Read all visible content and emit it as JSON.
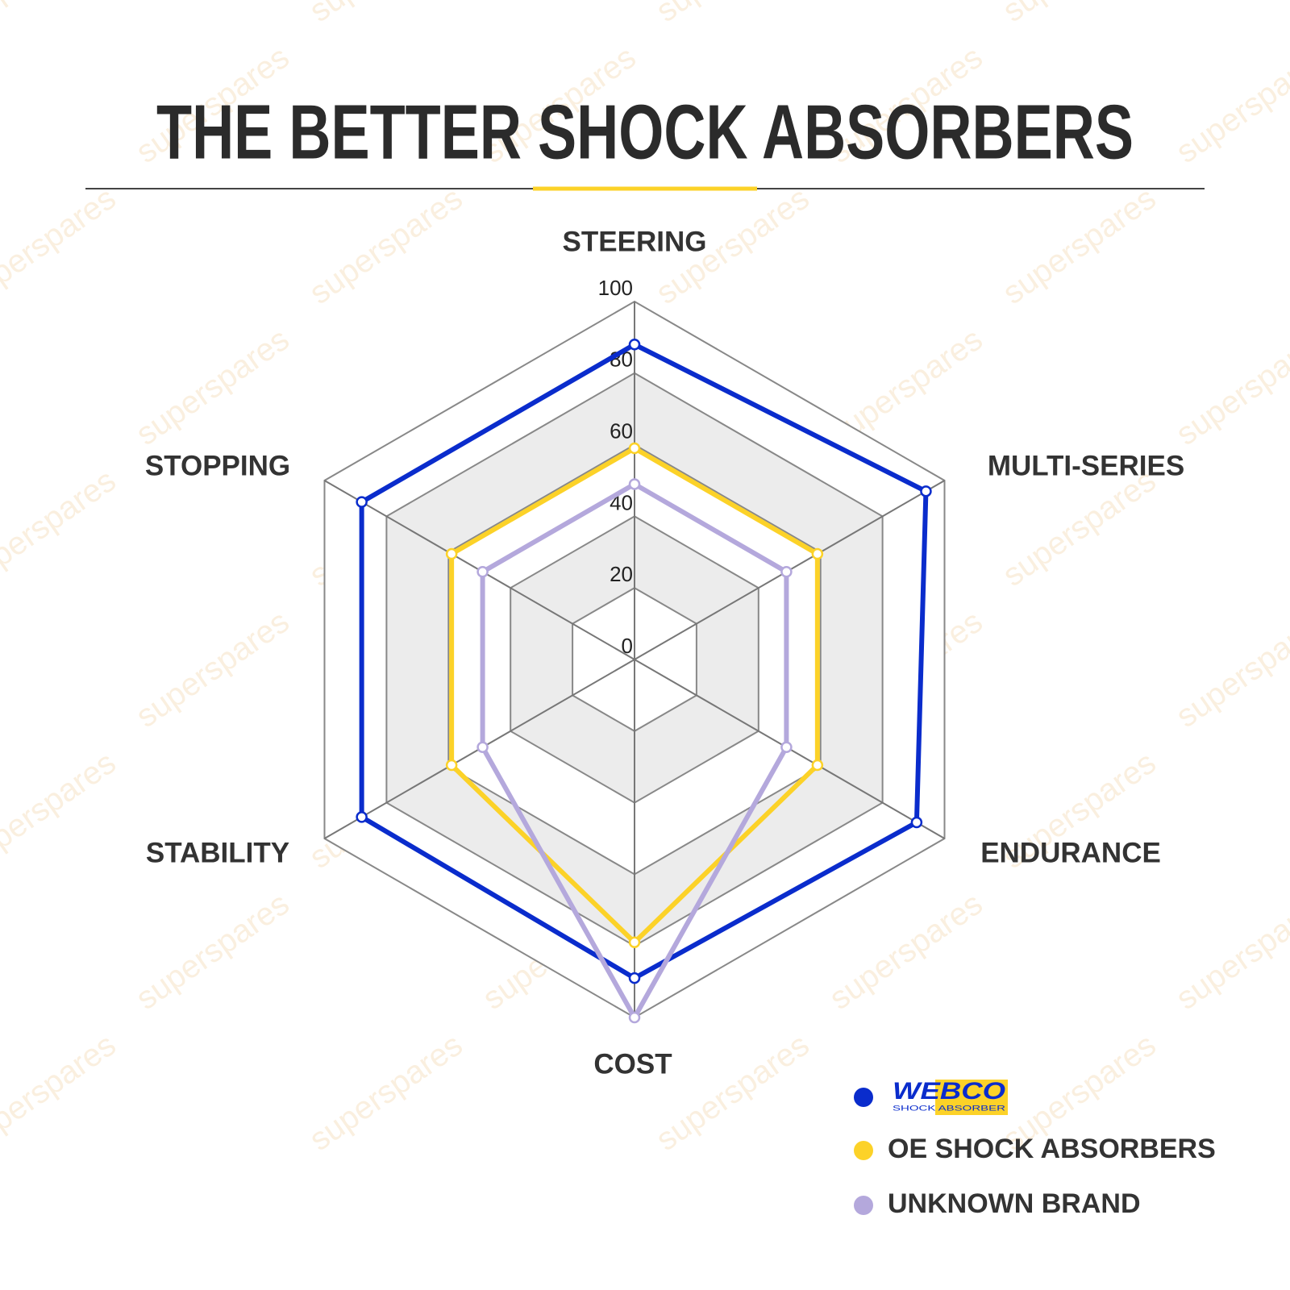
{
  "chart_data": {
    "type": "radar",
    "title": "THE BETTER SHOCK ABSORBERS",
    "watermark": "superspares",
    "categories": [
      "STEERING",
      "MULTI-SERIES",
      "ENDURANCE",
      "COST",
      "STABILITY",
      "STOPPING"
    ],
    "ylim": [
      0,
      100
    ],
    "yticks": [
      0,
      20,
      40,
      60,
      80,
      100
    ],
    "legend_logo_subtitle": "SHOCK ABSORBER",
    "series": [
      {
        "name": "WEBCO",
        "color": "#0a2ccc",
        "values": [
          88,
          94,
          91,
          89,
          88,
          88
        ]
      },
      {
        "name": "OE SHOCK ABSORBERS",
        "color": "#fcd228",
        "values": [
          59,
          59,
          59,
          79,
          59,
          59
        ]
      },
      {
        "name": "UNKNOWN BRAND",
        "color": "#b4a8dc",
        "values": [
          49,
          49,
          49,
          100,
          49,
          49
        ]
      }
    ]
  }
}
